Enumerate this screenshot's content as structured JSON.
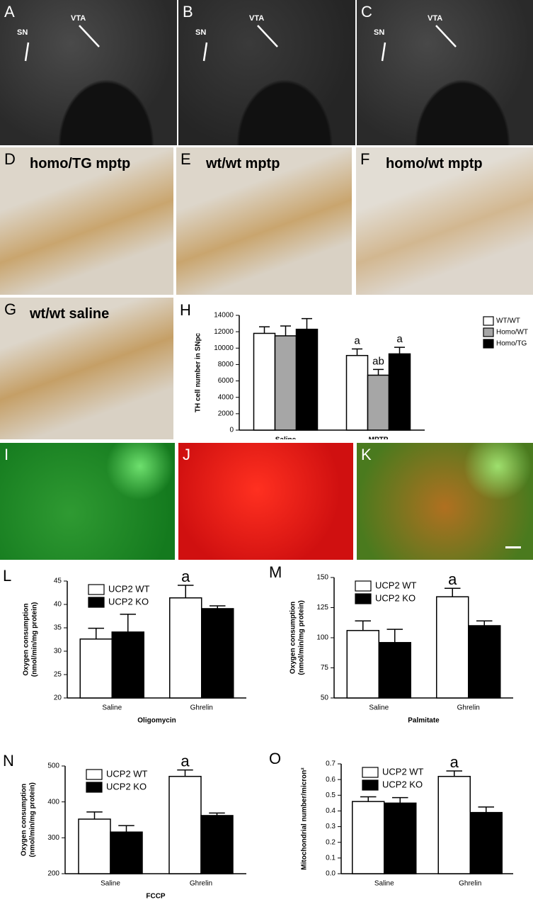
{
  "panels": [
    {
      "label": "A",
      "texts": [
        "SN",
        "VTA"
      ]
    },
    {
      "label": "B",
      "texts": [
        "SN",
        "VTA"
      ]
    },
    {
      "label": "C",
      "texts": [
        "SN",
        "VTA"
      ]
    },
    {
      "label": "D",
      "texts": [
        "homo/TG mptp"
      ]
    },
    {
      "label": "E",
      "texts": [
        "wt/wt mptp"
      ]
    },
    {
      "label": "F",
      "texts": [
        "homo/wt mptp"
      ]
    },
    {
      "label": "G",
      "texts": [
        "wt/wt saline"
      ]
    },
    {
      "label": "I",
      "texts": []
    },
    {
      "label": "J",
      "texts": []
    },
    {
      "label": "K",
      "texts": []
    }
  ],
  "chart_data": [
    {
      "type": "bar",
      "panel": "H",
      "ylabel": [
        "TH cell number in SNpc"
      ],
      "categories": [
        "Saline",
        "MPTP"
      ],
      "series": [
        {
          "name": "WT/WT",
          "color": "#ffffff",
          "values": [
            11800,
            9100
          ],
          "errors": [
            800,
            800
          ],
          "annotations": [
            null,
            "a"
          ]
        },
        {
          "name": "Homo/WT",
          "color": "#a6a6a6",
          "values": [
            11500,
            6700
          ],
          "errors": [
            1200,
            700
          ],
          "annotations": [
            null,
            "ab"
          ]
        },
        {
          "name": "Homo/TG",
          "color": "#000000",
          "values": [
            12300,
            9300
          ],
          "errors": [
            1300,
            800
          ],
          "annotations": [
            null,
            "a"
          ]
        }
      ],
      "ylim": [
        0,
        14000
      ],
      "yticks": [
        0,
        2000,
        4000,
        6000,
        8000,
        10000,
        12000,
        14000
      ],
      "legend": "right"
    },
    {
      "type": "bar",
      "panel": "L",
      "ylabel": [
        "Oxygen consumption",
        "(nmol/min/mg protein)"
      ],
      "xlabel": "Oligomycin",
      "categories": [
        "Saline",
        "Ghrelin"
      ],
      "series": [
        {
          "name": "UCP2 WT",
          "color": "#ffffff",
          "values": [
            32.6,
            41.4
          ],
          "errors": [
            2.3,
            2.7
          ],
          "annotations": [
            null,
            "a"
          ]
        },
        {
          "name": "UCP2 KO",
          "color": "#000000",
          "values": [
            34.1,
            39.1
          ],
          "errors": [
            3.8,
            0.6
          ],
          "annotations": [
            null,
            null
          ]
        }
      ],
      "ylim": [
        20,
        45
      ],
      "yticks": [
        20,
        25,
        30,
        35,
        40,
        45
      ],
      "legend": "upper left"
    },
    {
      "type": "bar",
      "panel": "M",
      "ylabel": [
        "Oxygen consumption",
        "(nmol/min/mg protein)"
      ],
      "xlabel": "Palmitate",
      "categories": [
        "Saline",
        "Ghrelin"
      ],
      "series": [
        {
          "name": "UCP2 WT",
          "color": "#ffffff",
          "values": [
            106,
            134
          ],
          "errors": [
            8,
            7
          ],
          "annotations": [
            null,
            "a"
          ]
        },
        {
          "name": "UCP2 KO",
          "color": "#000000",
          "values": [
            96,
            110
          ],
          "errors": [
            11,
            4
          ],
          "annotations": [
            null,
            null
          ]
        }
      ],
      "ylim": [
        50,
        150
      ],
      "yticks": [
        50,
        75,
        100,
        125,
        150
      ],
      "legend": "upper left"
    },
    {
      "type": "bar",
      "panel": "N",
      "ylabel": [
        "Oxygen consumption",
        "(nmol/min/mg protein)"
      ],
      "xlabel": "FCCP",
      "categories": [
        "Saline",
        "Ghrelin"
      ],
      "series": [
        {
          "name": "UCP2 WT",
          "color": "#ffffff",
          "values": [
            352,
            471
          ],
          "errors": [
            20,
            18
          ],
          "annotations": [
            null,
            "a"
          ]
        },
        {
          "name": "UCP2 KO",
          "color": "#000000",
          "values": [
            316,
            362
          ],
          "errors": [
            18,
            7
          ],
          "annotations": [
            null,
            null
          ]
        }
      ],
      "ylim": [
        200,
        500
      ],
      "yticks": [
        200,
        300,
        400,
        500
      ],
      "legend": "upper left"
    },
    {
      "type": "bar",
      "panel": "O",
      "ylabel": [
        "Mitochondrial number/micron²"
      ],
      "categories": [
        "Saline",
        "Ghrelin"
      ],
      "series": [
        {
          "name": "UCP2 WT",
          "color": "#ffffff",
          "values": [
            0.46,
            0.62
          ],
          "errors": [
            0.03,
            0.035
          ],
          "annotations": [
            null,
            "a"
          ]
        },
        {
          "name": "UCP2 KO",
          "color": "#000000",
          "values": [
            0.45,
            0.39
          ],
          "errors": [
            0.035,
            0.035
          ],
          "annotations": [
            null,
            null
          ]
        }
      ],
      "ylim": [
        0,
        0.7
      ],
      "yticks": [
        {
          "value": 0,
          "label": "0.0"
        },
        0.1,
        0.2,
        0.3,
        0.4,
        0.5,
        0.6,
        0.7
      ],
      "legend": "upper left"
    }
  ]
}
